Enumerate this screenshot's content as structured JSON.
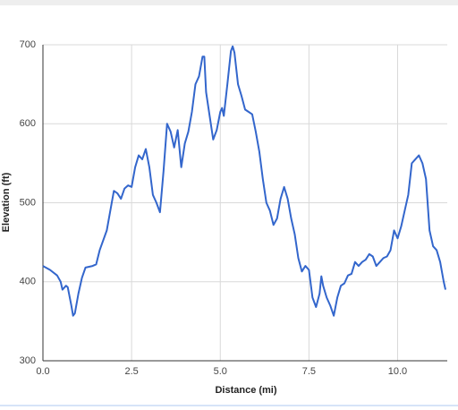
{
  "chart_data": {
    "type": "line",
    "x_label": "Distance (mi)",
    "y_label": "Elevation (ft)",
    "xlim": [
      0,
      11.4
    ],
    "ylim": [
      300,
      700
    ],
    "xticks": [
      {
        "value": 0,
        "label": "0.0"
      },
      2.5,
      {
        "value": 5,
        "label": "5.0"
      },
      7.5,
      {
        "value": 10,
        "label": "10.0"
      }
    ],
    "yticks": [
      300,
      400,
      500,
      600,
      700
    ],
    "grid": true,
    "x": [
      0,
      0.2,
      0.4,
      0.5,
      0.55,
      0.65,
      0.7,
      0.8,
      0.85,
      0.9,
      1.0,
      1.1,
      1.2,
      1.4,
      1.5,
      1.6,
      1.8,
      1.9,
      2.0,
      2.1,
      2.2,
      2.3,
      2.4,
      2.5,
      2.6,
      2.7,
      2.8,
      2.9,
      3.0,
      3.1,
      3.2,
      3.3,
      3.4,
      3.5,
      3.6,
      3.7,
      3.8,
      3.9,
      4.0,
      4.1,
      4.2,
      4.3,
      4.4,
      4.5,
      4.55,
      4.6,
      4.7,
      4.8,
      4.9,
      5.0,
      5.05,
      5.1,
      5.2,
      5.3,
      5.35,
      5.4,
      5.5,
      5.6,
      5.7,
      5.8,
      5.9,
      6.0,
      6.1,
      6.2,
      6.3,
      6.4,
      6.5,
      6.6,
      6.7,
      6.8,
      6.9,
      7.0,
      7.1,
      7.2,
      7.3,
      7.4,
      7.5,
      7.6,
      7.7,
      7.8,
      7.85,
      7.9,
      8.0,
      8.1,
      8.2,
      8.3,
      8.4,
      8.5,
      8.6,
      8.7,
      8.8,
      8.9,
      9.0,
      9.1,
      9.2,
      9.3,
      9.4,
      9.5,
      9.6,
      9.7,
      9.8,
      9.9,
      10.0,
      10.1,
      10.2,
      10.3,
      10.4,
      10.5,
      10.6,
      10.7,
      10.8,
      10.9,
      11.0,
      11.1,
      11.2,
      11.3,
      11.35
    ],
    "series": [
      {
        "name": "Elevation",
        "color": "#3366cc",
        "values": [
          420,
          415,
          408,
          400,
          390,
          395,
          393,
          370,
          357,
          360,
          385,
          405,
          418,
          420,
          422,
          440,
          465,
          490,
          515,
          512,
          505,
          518,
          522,
          520,
          545,
          560,
          555,
          568,
          545,
          510,
          500,
          488,
          540,
          600,
          590,
          570,
          592,
          545,
          575,
          590,
          615,
          650,
          660,
          685,
          685,
          640,
          610,
          580,
          592,
          615,
          620,
          610,
          650,
          692,
          698,
          690,
          650,
          635,
          618,
          615,
          612,
          590,
          565,
          530,
          500,
          490,
          472,
          480,
          505,
          520,
          505,
          480,
          460,
          430,
          413,
          420,
          415,
          380,
          368,
          385,
          407,
          395,
          380,
          370,
          357,
          380,
          395,
          398,
          408,
          410,
          425,
          420,
          425,
          428,
          435,
          432,
          420,
          425,
          430,
          432,
          440,
          465,
          455,
          470,
          490,
          510,
          550,
          555,
          560,
          550,
          530,
          465,
          445,
          440,
          425,
          400,
          390
        ]
      }
    ]
  }
}
